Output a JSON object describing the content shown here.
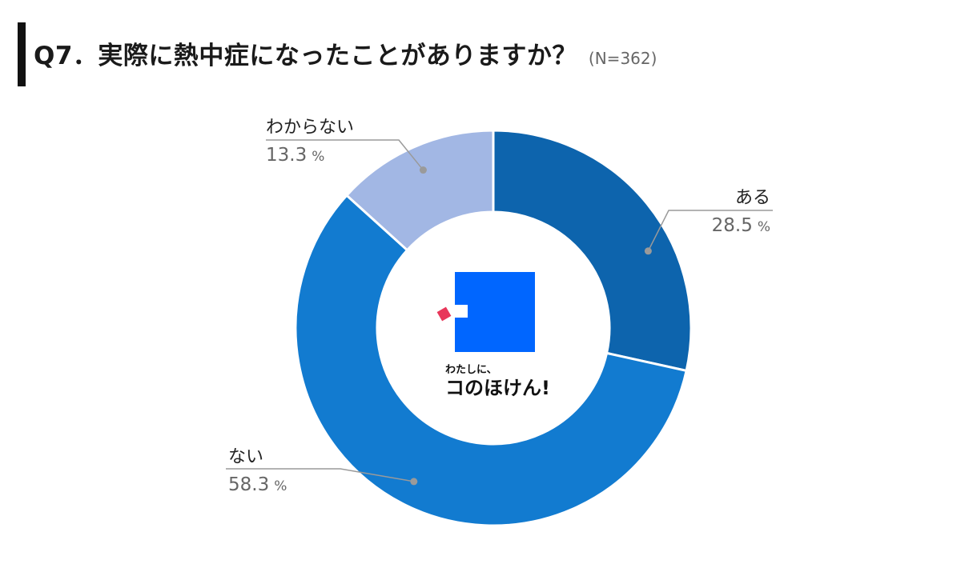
{
  "header": {
    "title": "Q7．実際に熱中症になったことがありますか？",
    "n_label": "(N=362)"
  },
  "chart_data": {
    "type": "pie",
    "style": "donut",
    "categories": [
      "ある",
      "ない",
      "わからない"
    ],
    "values": [
      28.5,
      58.3,
      13.3
    ],
    "unit": "%",
    "colors": [
      "#0d64ad",
      "#127bd0",
      "#a2b7e4"
    ]
  },
  "logo": {
    "tagline": "わたしに、",
    "name": "コのほけん!",
    "colors": {
      "square": "#0066ff",
      "diamond": "#e8375a"
    }
  }
}
